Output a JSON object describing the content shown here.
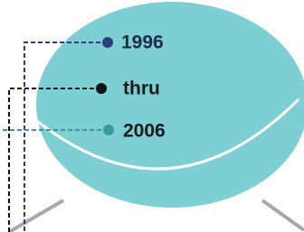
{
  "labels": [
    "1996",
    "thru",
    "2006"
  ]
}
